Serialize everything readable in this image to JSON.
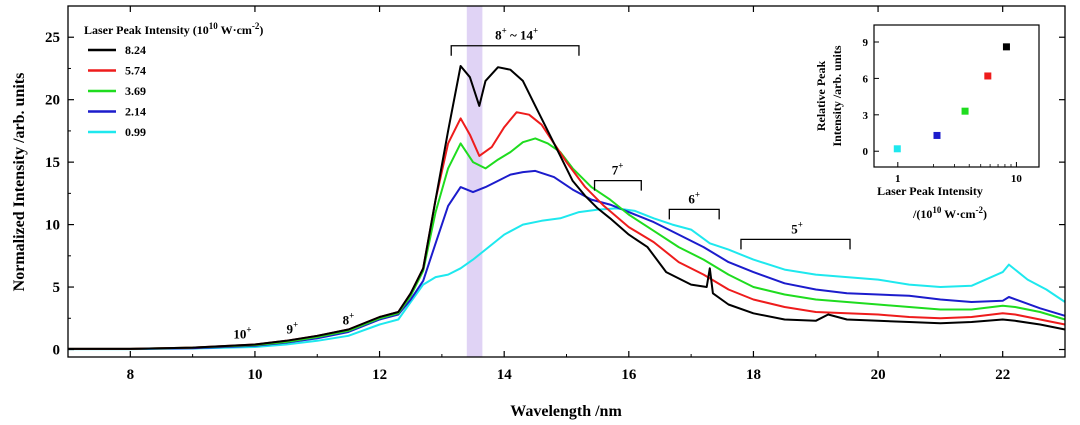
{
  "chart_data": {
    "type": "line",
    "xlabel": "Wavelength /nm",
    "ylabel": "Normalized Intensity /arb. units",
    "xlim": [
      7,
      23
    ],
    "ylim": [
      -0.6,
      27.5
    ],
    "xticks": [
      8,
      10,
      12,
      14,
      16,
      18,
      20,
      22
    ],
    "yticks": [
      0,
      5,
      10,
      15,
      20,
      25
    ],
    "legend": {
      "title_main": "Laser Peak Intensity (10",
      "title_exp": "10",
      "title_rest": " W·cm",
      "title_exp2": "-2",
      "title_close": ")",
      "position": "top-left"
    },
    "highlight_band": {
      "x": [
        13.4,
        13.65
      ],
      "color": "#d8c8f3"
    },
    "series": [
      {
        "name": "8.24",
        "color": "#000000",
        "x": [
          7,
          8,
          9,
          10,
          10.5,
          11,
          11.5,
          12,
          12.3,
          12.5,
          12.7,
          12.9,
          13.1,
          13.3,
          13.45,
          13.6,
          13.7,
          13.9,
          14.1,
          14.3,
          14.5,
          14.7,
          14.9,
          15.1,
          15.3,
          15.5,
          15.7,
          16,
          16.3,
          16.6,
          17,
          17.25,
          17.3,
          17.35,
          17.6,
          18,
          18.5,
          19,
          19.2,
          19.5,
          20,
          20.5,
          21,
          21.5,
          22,
          22.2,
          22.6,
          23
        ],
        "y": [
          0.05,
          0.05,
          0.15,
          0.4,
          0.7,
          1.1,
          1.6,
          2.6,
          3.0,
          4.5,
          6.5,
          12,
          17.5,
          22.7,
          21.8,
          19.5,
          21.5,
          22.6,
          22.4,
          21.5,
          19.5,
          17.5,
          15.5,
          13.5,
          12.3,
          11.3,
          10.5,
          9.2,
          8.2,
          6.2,
          5.2,
          5.0,
          6.5,
          4.5,
          3.6,
          2.9,
          2.4,
          2.3,
          2.8,
          2.4,
          2.3,
          2.2,
          2.1,
          2.2,
          2.4,
          2.3,
          2.0,
          1.6
        ]
      },
      {
        "name": "5.74",
        "color": "#ee1c1c",
        "x": [
          7,
          8,
          9,
          10,
          10.5,
          11,
          11.5,
          12,
          12.3,
          12.5,
          12.7,
          12.9,
          13.1,
          13.3,
          13.45,
          13.6,
          13.8,
          14,
          14.2,
          14.4,
          14.6,
          14.8,
          15,
          15.3,
          15.6,
          16,
          16.4,
          16.8,
          17.2,
          17.6,
          18,
          18.5,
          19,
          19.5,
          20,
          20.5,
          21,
          21.5,
          22,
          22.2,
          22.6,
          23
        ],
        "y": [
          0.05,
          0.05,
          0.15,
          0.4,
          0.7,
          1.1,
          1.6,
          2.6,
          3.0,
          4.5,
          6.5,
          12,
          16.5,
          18.5,
          17.2,
          15.5,
          16.2,
          17.8,
          19.0,
          18.8,
          18.0,
          16.5,
          15.0,
          13.0,
          11.5,
          9.8,
          8.6,
          7.0,
          6.0,
          4.8,
          4.0,
          3.4,
          3.0,
          2.9,
          2.8,
          2.6,
          2.5,
          2.6,
          2.9,
          2.8,
          2.4,
          2.0
        ]
      },
      {
        "name": "3.69",
        "color": "#1fdc1f",
        "x": [
          7,
          8,
          9,
          10,
          10.5,
          11,
          11.5,
          12,
          12.3,
          12.5,
          12.7,
          12.9,
          13.1,
          13.3,
          13.5,
          13.7,
          13.9,
          14.1,
          14.3,
          14.5,
          14.7,
          14.9,
          15.1,
          15.4,
          15.7,
          16,
          16.4,
          16.8,
          17.2,
          17.6,
          18,
          18.5,
          19,
          19.5,
          20,
          20.5,
          21,
          21.5,
          22,
          22.2,
          22.6,
          23
        ],
        "y": [
          0.05,
          0.05,
          0.15,
          0.35,
          0.6,
          1.0,
          1.5,
          2.5,
          2.9,
          4.3,
          6.3,
          11,
          14.5,
          16.5,
          15.0,
          14.5,
          15.2,
          15.8,
          16.6,
          16.9,
          16.5,
          15.8,
          14.5,
          13.0,
          12.0,
          10.8,
          9.5,
          8.2,
          7.2,
          6.0,
          5.0,
          4.4,
          4.0,
          3.8,
          3.6,
          3.4,
          3.2,
          3.2,
          3.5,
          3.4,
          3.0,
          2.4
        ]
      },
      {
        "name": "2.14",
        "color": "#1c1ccc",
        "x": [
          7,
          8,
          9,
          10,
          10.5,
          11,
          11.5,
          12,
          12.3,
          12.5,
          12.7,
          12.9,
          13.1,
          13.3,
          13.5,
          13.7,
          13.9,
          14.1,
          14.3,
          14.5,
          14.8,
          15.1,
          15.4,
          15.7,
          16,
          16.4,
          16.8,
          17.2,
          17.6,
          18,
          18.5,
          19,
          19.5,
          20,
          20.5,
          21,
          21.5,
          22,
          22.1,
          22.6,
          23
        ],
        "y": [
          0.05,
          0.05,
          0.1,
          0.3,
          0.55,
          0.9,
          1.4,
          2.4,
          2.8,
          4.0,
          5.5,
          8.5,
          11.5,
          13.0,
          12.6,
          13.0,
          13.5,
          14.0,
          14.2,
          14.3,
          13.8,
          12.8,
          12.0,
          11.6,
          11.0,
          10.2,
          9.2,
          8.2,
          7.0,
          6.2,
          5.3,
          4.8,
          4.5,
          4.4,
          4.3,
          4.0,
          3.8,
          3.9,
          4.2,
          3.3,
          2.7
        ]
      },
      {
        "name": "0.99",
        "color": "#1ee8ee",
        "x": [
          7,
          8,
          9,
          10,
          10.5,
          11,
          11.5,
          12,
          12.3,
          12.5,
          12.7,
          12.9,
          13.1,
          13.3,
          13.5,
          13.7,
          14,
          14.3,
          14.6,
          14.9,
          15.2,
          15.5,
          15.8,
          16.1,
          16.4,
          16.7,
          17,
          17.3,
          17.6,
          18,
          18.5,
          19,
          19.5,
          20,
          20.5,
          21,
          21.5,
          22,
          22.1,
          22.4,
          22.7,
          23
        ],
        "y": [
          0.03,
          0.03,
          0.08,
          0.2,
          0.4,
          0.7,
          1.1,
          2.0,
          2.4,
          3.8,
          5.2,
          5.8,
          6.0,
          6.5,
          7.2,
          8.0,
          9.2,
          10.0,
          10.3,
          10.5,
          11.0,
          11.2,
          11.3,
          11.1,
          10.5,
          10.0,
          9.6,
          8.5,
          8.0,
          7.2,
          6.4,
          6.0,
          5.8,
          5.6,
          5.2,
          5.0,
          5.1,
          6.2,
          6.8,
          5.6,
          4.8,
          3.8
        ]
      }
    ],
    "annotations": [
      {
        "label": "8",
        "sup": "+",
        "x": 11.5,
        "y": 2.0,
        "bracket": null
      },
      {
        "label": "9",
        "sup": "+",
        "x": 10.6,
        "y": 1.3,
        "bracket": null
      },
      {
        "label": "10",
        "sup": "+",
        "x": 9.8,
        "y": 0.9,
        "bracket": null
      },
      {
        "label": "8",
        "sup": "+",
        "label2": " ~ 14",
        "sup2": "+",
        "x": 14.2,
        "y": 24.8,
        "bracket": [
          13.15,
          15.2
        ]
      },
      {
        "label": "7",
        "sup": "+",
        "x": 15.82,
        "y": 14.0,
        "bracket": [
          15.45,
          16.2
        ]
      },
      {
        "label": "6",
        "sup": "+",
        "x": 17.05,
        "y": 11.7,
        "bracket": [
          16.65,
          17.45
        ]
      },
      {
        "label": "5",
        "sup": "+",
        "x": 18.7,
        "y": 9.3,
        "bracket": [
          17.8,
          19.55
        ]
      }
    ],
    "inset": {
      "type": "scatter",
      "xscale": "log",
      "xlim": [
        0.63,
        15.5
      ],
      "ylim": [
        -1.3,
        10.4
      ],
      "xticks": [
        1,
        10
      ],
      "yticks": [
        0,
        3,
        6,
        9
      ],
      "ylabel_line1": "Relative Peak",
      "ylabel_line2": "Intensity /arb. units",
      "xlabel_line1": "Laser Peak Intensity",
      "xlabel_line2_pre": "/(10",
      "xlabel_line2_exp": "10",
      "xlabel_line2_mid": " W·cm",
      "xlabel_line2_exp2": "-2",
      "xlabel_line2_post": ")",
      "points": [
        {
          "x": 0.99,
          "y": 0.2,
          "color": "#1ee8ee"
        },
        {
          "x": 2.14,
          "y": 1.3,
          "color": "#1c1ccc"
        },
        {
          "x": 3.69,
          "y": 3.3,
          "color": "#1fdc1f"
        },
        {
          "x": 5.74,
          "y": 6.2,
          "color": "#ee1c1c"
        },
        {
          "x": 8.24,
          "y": 8.6,
          "color": "#000000"
        }
      ]
    }
  }
}
